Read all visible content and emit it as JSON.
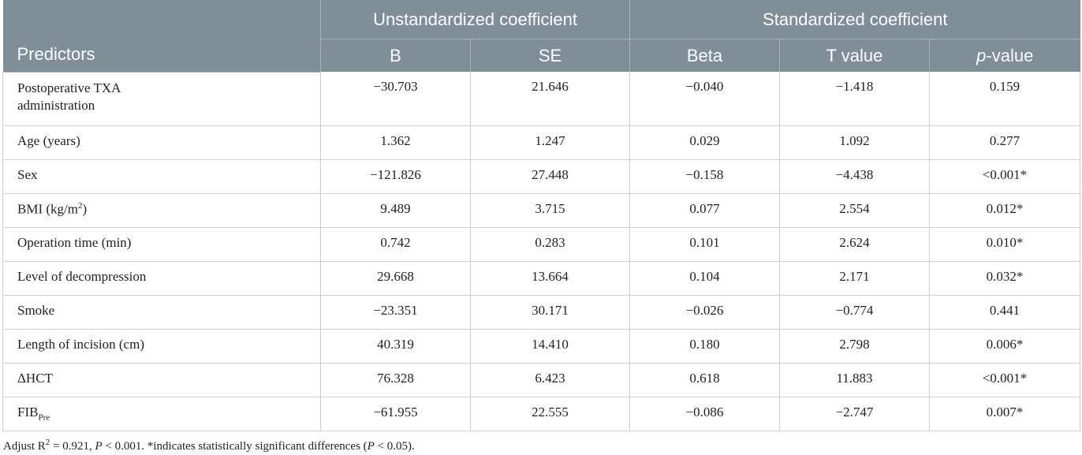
{
  "header": {
    "group_unstandardized": "Unstandardized coefficient",
    "group_standardized": "Standardized coefficient",
    "col_predictors": "Predictors",
    "col_b": "B",
    "col_se": "SE",
    "col_beta": "Beta",
    "col_t": "T value",
    "col_p_italic": "p",
    "col_p_suffix": "-value"
  },
  "rows": [
    {
      "predictor": "Postoperative TXA administration",
      "b": "−30.703",
      "se": "21.646",
      "beta": "−0.040",
      "t": "−1.418",
      "p": "0.159"
    },
    {
      "predictor": "Age (years)",
      "b": "1.362",
      "se": "1.247",
      "beta": "0.029",
      "t": "1.092",
      "p": "0.277"
    },
    {
      "predictor": "Sex",
      "b": "−121.826",
      "se": "27.448",
      "beta": "−0.158",
      "t": "−4.438",
      "p": "<0.001*"
    },
    {
      "predictor": "BMI (kg/m",
      "predictor_sup": "2",
      "predictor_tail": ")",
      "b": "9.489",
      "se": "3.715",
      "beta": "0.077",
      "t": "2.554",
      "p": "0.012*"
    },
    {
      "predictor": "Operation time (min)",
      "b": "0.742",
      "se": "0.283",
      "beta": "0.101",
      "t": "2.624",
      "p": "0.010*"
    },
    {
      "predictor": "Level of decompression",
      "b": "29.668",
      "se": "13.664",
      "beta": "0.104",
      "t": "2.171",
      "p": "0.032*"
    },
    {
      "predictor": "Smoke",
      "b": "−23.351",
      "se": "30.171",
      "beta": "−0.026",
      "t": "−0.774",
      "p": "0.441"
    },
    {
      "predictor": "Length of incision (cm)",
      "b": "40.319",
      "se": "14.410",
      "beta": "0.180",
      "t": "2.798",
      "p": "0.006*"
    },
    {
      "predictor": "ΔHCT",
      "b": "76.328",
      "se": "6.423",
      "beta": "0.618",
      "t": "11.883",
      "p": "<0.001*"
    },
    {
      "predictor": "FIB",
      "predictor_sub": "Pre",
      "b": "−61.955",
      "se": "22.555",
      "beta": "−0.086",
      "t": "−2.747",
      "p": "0.007*"
    }
  ],
  "footnote": {
    "part1": "Adjust R",
    "sup": "2",
    "part2": " = 0.921, ",
    "p_italic": "P",
    "part3": " < 0.001. *indicates statistically significant differences (",
    "p_italic2": "P",
    "part4": " < 0.05)."
  }
}
